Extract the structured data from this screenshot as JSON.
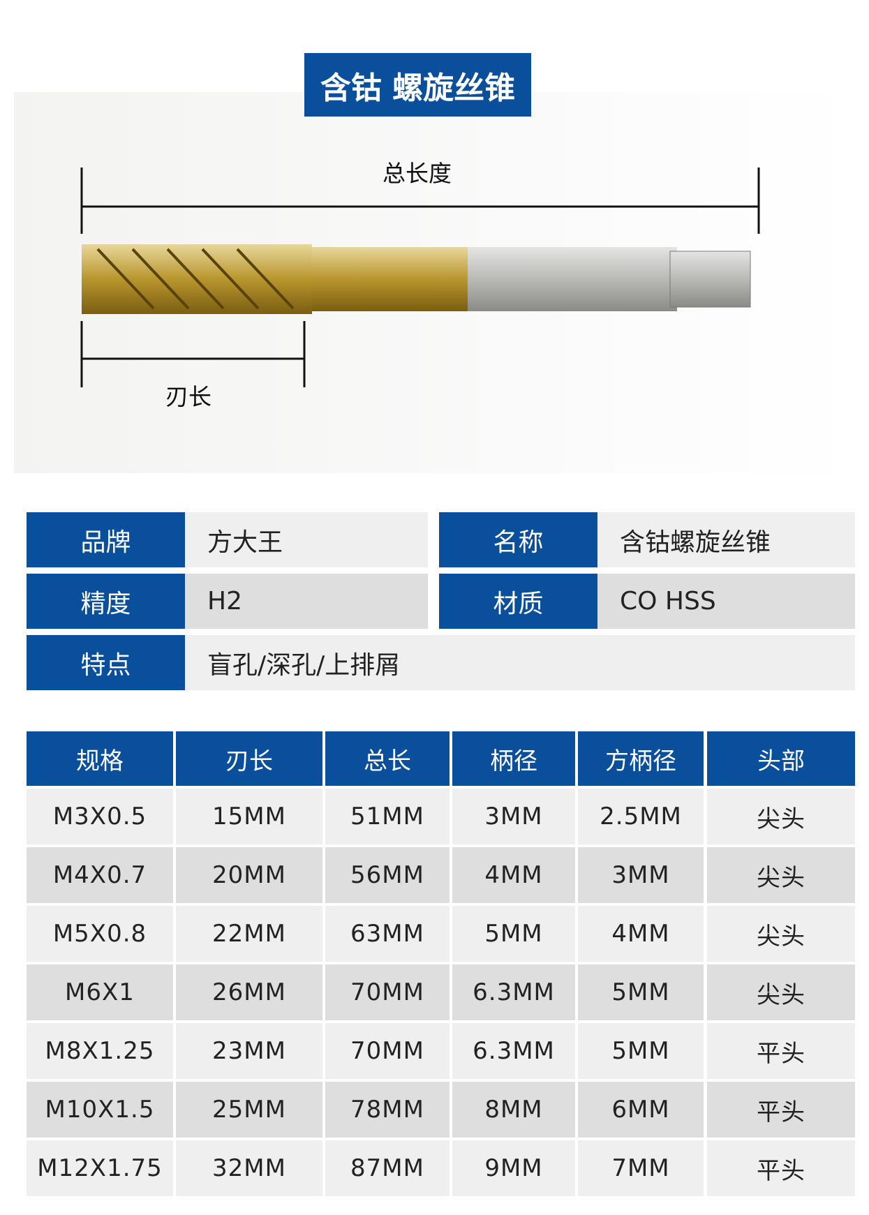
{
  "title": "含钴 螺旋丝锥",
  "diagram": {
    "total_length_label": "总长度",
    "flute_length_label": "刃长"
  },
  "colors": {
    "brand_blue": "#0a4f9b",
    "row_light": "#efefef",
    "row_dark": "#dedede"
  },
  "info": [
    {
      "key": "品牌",
      "value": "方大王"
    },
    {
      "key": "名称",
      "value": "含钴螺旋丝锥"
    },
    {
      "key": "精度",
      "value": "H2"
    },
    {
      "key": "材质",
      "value": "CO HSS"
    },
    {
      "key": "特点",
      "value": "盲孔/深孔/上排屑"
    }
  ],
  "table": {
    "headers": [
      "规格",
      "刃长",
      "总长",
      "柄径",
      "方柄径",
      "头部"
    ],
    "rows": [
      [
        "M3X0.5",
        "15MM",
        "51MM",
        "3MM",
        "2.5MM",
        "尖头"
      ],
      [
        "M4X0.7",
        "20MM",
        "56MM",
        "4MM",
        "3MM",
        "尖头"
      ],
      [
        "M5X0.8",
        "22MM",
        "63MM",
        "5MM",
        "4MM",
        "尖头"
      ],
      [
        "M6X1",
        "26MM",
        "70MM",
        "6.3MM",
        "5MM",
        "尖头"
      ],
      [
        "M8X1.25",
        "23MM",
        "70MM",
        "6.3MM",
        "5MM",
        "平头"
      ],
      [
        "M10X1.5",
        "25MM",
        "78MM",
        "8MM",
        "6MM",
        "平头"
      ],
      [
        "M12X1.75",
        "32MM",
        "87MM",
        "9MM",
        "7MM",
        "平头"
      ]
    ]
  }
}
